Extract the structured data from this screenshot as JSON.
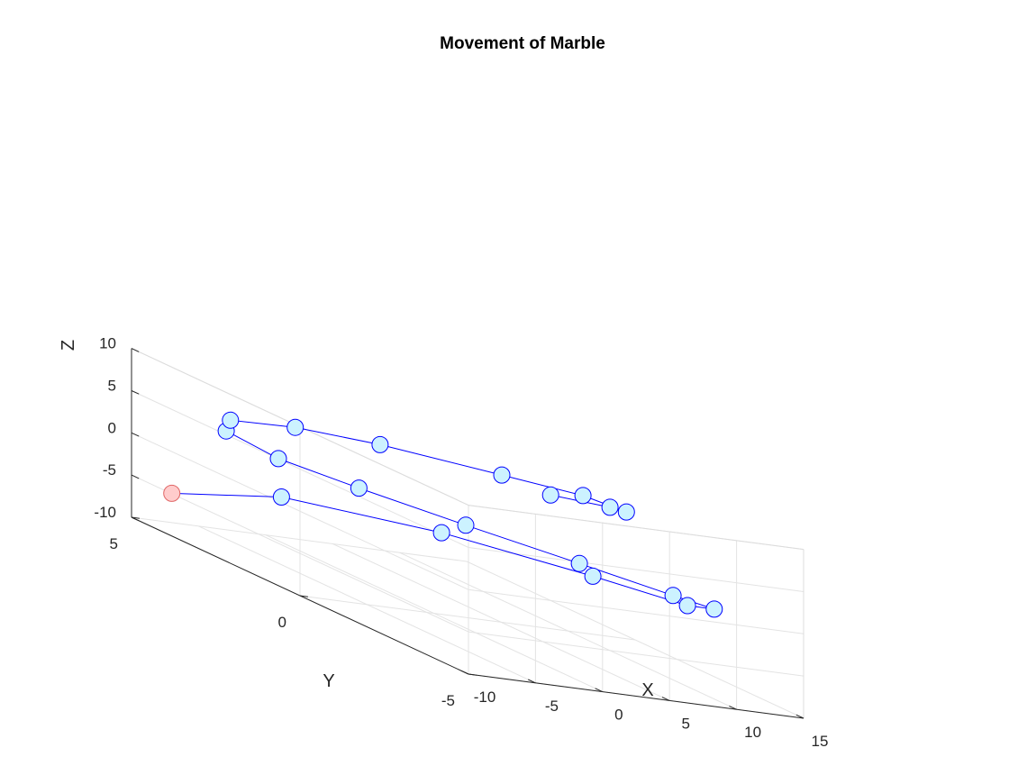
{
  "chart_data": {
    "type": "scatter",
    "subtype": "line3d",
    "title": "Movement of Marble",
    "xlabel": "X",
    "ylabel": "Y",
    "zlabel": "Z",
    "xlim": [
      -10,
      15
    ],
    "ylim": [
      -5,
      5
    ],
    "zlim": [
      -10,
      10
    ],
    "xticks": [
      -10,
      -5,
      0,
      5,
      10,
      15
    ],
    "yticks": [
      -5,
      0,
      5
    ],
    "zticks": [
      -10,
      -5,
      0,
      5,
      10
    ],
    "xtick_labels": [
      "-10",
      "-5",
      "0",
      "5",
      "10",
      "15"
    ],
    "ytick_labels": [
      "-5",
      "0",
      "5"
    ],
    "ztick_labels": [
      "-10",
      "-5",
      "0",
      "5",
      "10"
    ],
    "grid": true,
    "box": true,
    "legend": "none",
    "line_color": "#0000ff",
    "marker_color": "#ccf2ff",
    "start_marker_color": "#ffcccc",
    "points": [
      {
        "x": -8.0,
        "y": 4.6,
        "z": -6.0
      },
      {
        "x": -4.6,
        "y": 2.7,
        "z": -2.2
      },
      {
        "x": -1.2,
        "y": -0.7,
        "z": 0.6
      },
      {
        "x": 3.3,
        "y": -3.4,
        "z": 1.4
      },
      {
        "x": 8.1,
        "y": -4.3,
        "z": 0.6
      },
      {
        "x": 11.6,
        "y": -3.7,
        "z": -0.2
      },
      {
        "x": 12.8,
        "y": -2.0,
        "z": -1.5
      },
      {
        "x": 12.1,
        "y": 0.5,
        "z": -2.5
      },
      {
        "x": 9.4,
        "y": 2.8,
        "z": -2.8
      },
      {
        "x": 4.7,
        "y": 4.1,
        "z": -1.8
      },
      {
        "x": -0.3,
        "y": 4.5,
        "z": -0.1
      },
      {
        "x": -5.2,
        "y": 4.1,
        "z": 2.9
      },
      {
        "x": -8.4,
        "y": 2.7,
        "z": 6.1
      },
      {
        "x": -9.1,
        "y": 0.5,
        "z": 9.2
      },
      {
        "x": -8.3,
        "y": -1.7,
        "z": 11.4
      },
      {
        "x": -4.5,
        "y": -3.8,
        "z": 12.5
      },
      {
        "x": 0.3,
        "y": -4.3,
        "z": 12.0
      },
      {
        "x": 5.3,
        "y": -3.6,
        "z": 9.8
      },
      {
        "x": 8.6,
        "y": -1.8,
        "z": 7.7
      },
      {
        "x": 9.7,
        "y": 0.4,
        "z": 5.3
      }
    ]
  }
}
